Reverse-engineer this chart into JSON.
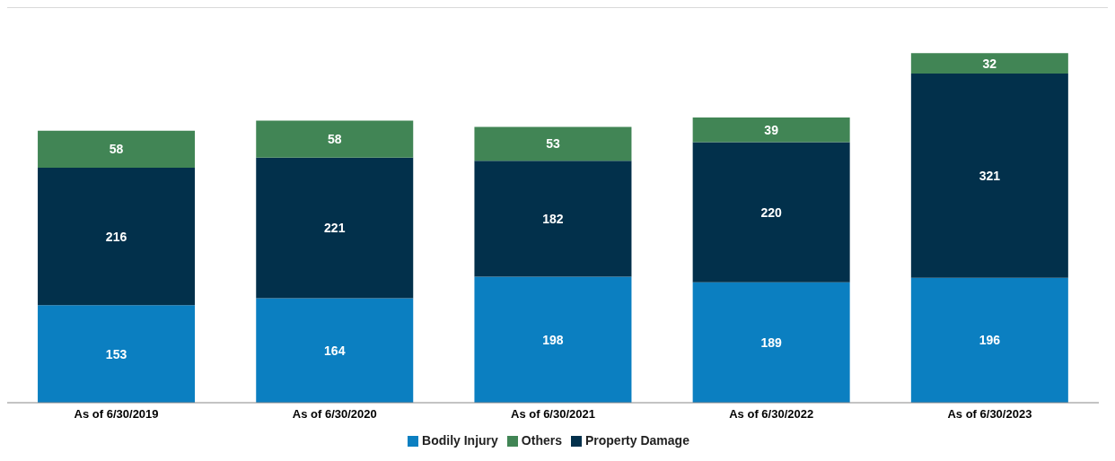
{
  "chart_data": {
    "type": "bar",
    "stacked": true,
    "data_labels": true,
    "legend": "bottom",
    "grid": false,
    "categories": [
      "As of  6/30/2019",
      "As of  6/30/2020",
      "As of  6/30/2021",
      "As of  6/30/2022",
      "As of  6/30/2023"
    ],
    "series": [
      {
        "name": "Bodily Injury",
        "color": "#0b7fc1",
        "values": [
          153,
          164,
          198,
          189,
          196
        ]
      },
      {
        "name": "Property Damage",
        "color": "#02304b",
        "values": [
          216,
          221,
          182,
          220,
          321
        ]
      },
      {
        "name": "Others",
        "color": "#418555",
        "values": [
          58,
          58,
          53,
          39,
          32
        ]
      }
    ]
  }
}
